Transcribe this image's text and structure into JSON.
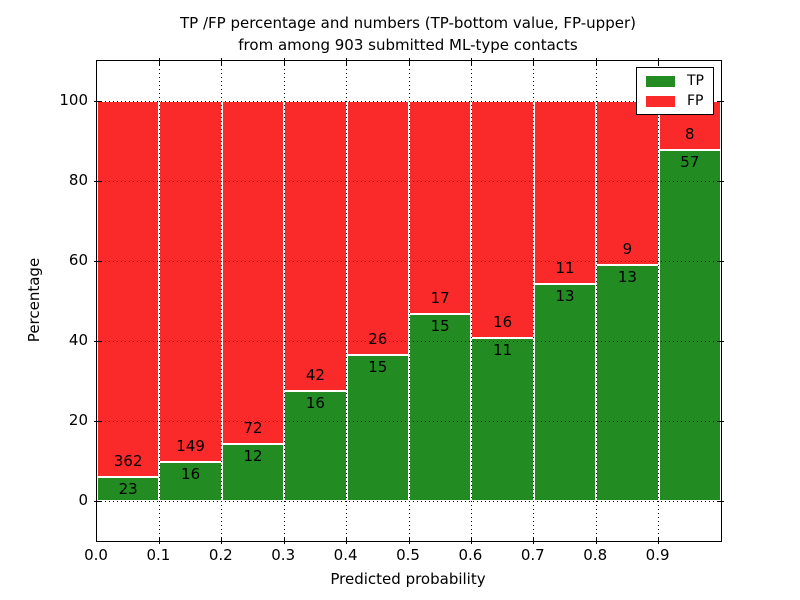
{
  "title": {
    "line1": "TP /FP percentage and numbers (TP-bottom value, FP-upper)",
    "line2": "from among 903 submitted ML-type contacts"
  },
  "axes": {
    "xlabel": "Predicted probability",
    "ylabel": "Percentage",
    "x_tick_labels": [
      "0.0",
      "0.1",
      "0.2",
      "0.3",
      "0.4",
      "0.5",
      "0.6",
      "0.7",
      "0.8",
      "0.9"
    ],
    "y_tick_values": [
      0,
      20,
      40,
      60,
      80,
      100
    ],
    "y_tick_labels": [
      "0",
      "20",
      "40",
      "60",
      "80",
      "100"
    ],
    "xlim": [
      0.0,
      1.0
    ],
    "ylim": [
      -10,
      110
    ],
    "grid_style": "dotted-black"
  },
  "legend": {
    "position": "upper-right",
    "entries": [
      {
        "label": "TP",
        "color": "#228b22"
      },
      {
        "label": "FP",
        "color": "#fa2a2a"
      }
    ]
  },
  "chart_data": {
    "type": "bar",
    "mode": "stacked_percent",
    "title": "TP /FP percentage and numbers (TP-bottom value, FP-upper) from among 903 submitted ML-type contacts",
    "xlabel": "Predicted probability",
    "ylabel": "Percentage",
    "total_contacts": 903,
    "bin_width": 0.1,
    "bin_starts": [
      0.0,
      0.1,
      0.2,
      0.3,
      0.4,
      0.5,
      0.6,
      0.7,
      0.8,
      0.9
    ],
    "series": [
      {
        "name": "TP",
        "color": "#228b22",
        "counts": [
          23,
          16,
          12,
          16,
          15,
          15,
          11,
          13,
          13,
          57
        ]
      },
      {
        "name": "FP",
        "color": "#fa2a2a",
        "counts": [
          362,
          149,
          72,
          42,
          26,
          17,
          16,
          11,
          9,
          8
        ]
      }
    ],
    "tp_percent_of_bin": [
      6.0,
      9.7,
      14.3,
      27.6,
      36.6,
      46.9,
      40.7,
      54.2,
      59.1,
      87.7
    ],
    "bar_top_percent": 100,
    "colors": {
      "tp": "#228b22",
      "fp": "#fa2a2a"
    }
  }
}
